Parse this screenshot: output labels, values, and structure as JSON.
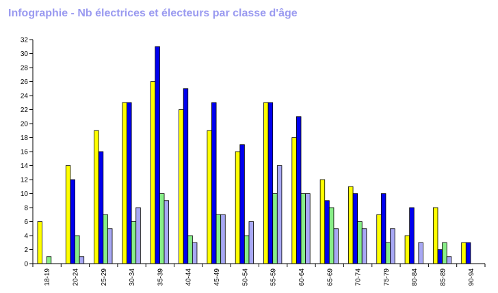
{
  "title": "Infographie - Nb électrices et électeurs par classe d'âge",
  "colors": {
    "title": "#9a9af0",
    "series": [
      "#ffff00",
      "#0000ee",
      "#88ee88",
      "#a8a8f4"
    ],
    "outline": "#000000",
    "background": "#ffffff"
  },
  "chart_data": {
    "type": "bar",
    "title": "Infographie - Nb électrices et électeurs par classe d'âge",
    "xlabel": "",
    "ylabel": "",
    "ylim": [
      0,
      32
    ],
    "yticks": [
      0,
      2,
      4,
      6,
      8,
      10,
      12,
      14,
      16,
      18,
      20,
      22,
      24,
      26,
      28,
      30,
      32
    ],
    "grid": false,
    "legend": "none",
    "categories": [
      "18-19",
      "20-24",
      "25-29",
      "30-34",
      "35-39",
      "40-44",
      "45-49",
      "50-54",
      "55-59",
      "60-64",
      "65-69",
      "70-74",
      "75-79",
      "80-84",
      "85-89",
      "90-94"
    ],
    "series": [
      {
        "values": [
          6,
          14,
          19,
          23,
          26,
          22,
          19,
          16,
          23,
          18,
          12,
          11,
          7,
          4,
          8,
          3
        ]
      },
      {
        "values": [
          0,
          12,
          16,
          23,
          31,
          25,
          23,
          17,
          23,
          21,
          9,
          10,
          10,
          8,
          2,
          3
        ]
      },
      {
        "values": [
          1,
          4,
          7,
          6,
          10,
          4,
          7,
          4,
          10,
          10,
          8,
          6,
          3,
          0,
          3,
          0
        ]
      },
      {
        "values": [
          0,
          1,
          5,
          8,
          9,
          3,
          7,
          6,
          14,
          10,
          5,
          5,
          5,
          3,
          1,
          0
        ]
      }
    ]
  }
}
